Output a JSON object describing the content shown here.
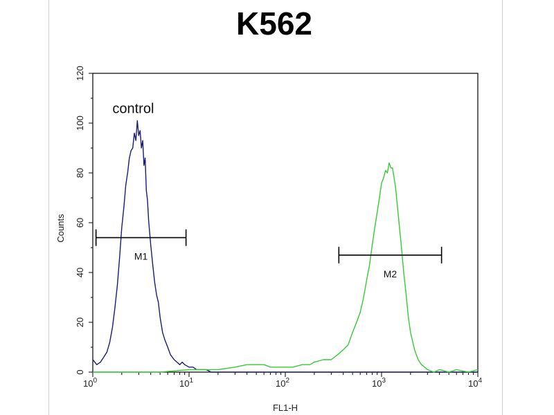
{
  "chart_data": {
    "type": "line",
    "title": "K562",
    "xlabel": "FL1-H",
    "ylabel": "Counts",
    "x_scale": "log",
    "xlim": [
      1,
      10000
    ],
    "ylim": [
      0,
      120
    ],
    "y_ticks": [
      "0",
      "20",
      "40",
      "60",
      "80",
      "100",
      "120"
    ],
    "x_ticks": [
      {
        "base": "10",
        "exp": "0",
        "value": 1
      },
      {
        "base": "10",
        "exp": "1",
        "value": 10
      },
      {
        "base": "10",
        "exp": "2",
        "value": 100
      },
      {
        "base": "10",
        "exp": "3",
        "value": 1000
      },
      {
        "base": "10",
        "exp": "4",
        "value": 10000
      }
    ],
    "grid": false,
    "annotations": [
      {
        "text": "control",
        "x": 1.6,
        "y": 104
      }
    ],
    "gates": [
      {
        "label": "M1",
        "x_start": 1.08,
        "x_end": 9.3,
        "y": 54
      },
      {
        "label": "M2",
        "x_start": 360,
        "x_end": 4200,
        "y": 47
      }
    ],
    "series": [
      {
        "color": "#1a1a7a",
        "x": [
          1.0,
          1.1,
          1.2,
          1.3,
          1.4,
          1.5,
          1.6,
          1.7,
          1.8,
          1.9,
          2.0,
          2.1,
          2.2,
          2.3,
          2.4,
          2.5,
          2.6,
          2.7,
          2.8,
          2.9,
          3.0,
          3.1,
          3.2,
          3.3,
          3.4,
          3.5,
          3.6,
          3.7,
          3.8,
          4.0,
          4.2,
          4.4,
          4.6,
          4.8,
          5.0,
          5.3,
          5.6,
          6.0,
          6.4,
          7.0,
          7.5,
          8.0,
          8.5,
          9.0,
          10.0,
          11.0,
          12.0,
          13.0,
          15.0,
          17.0,
          20.0,
          25.0,
          30.0,
          50.0,
          100.0,
          300.0,
          1000.0,
          3000.0,
          10000.0
        ],
        "y": [
          5,
          3,
          4,
          6,
          8,
          12,
          18,
          26,
          35,
          46,
          58,
          66,
          75,
          80,
          86,
          89,
          90,
          96,
          93,
          101,
          95,
          97,
          90,
          93,
          83,
          86,
          73,
          69,
          61,
          51,
          43,
          36,
          31,
          28,
          22,
          16,
          13,
          10,
          7,
          5,
          4,
          3,
          4,
          3,
          2,
          2,
          1,
          1,
          1,
          0,
          0,
          0,
          0,
          0,
          0,
          0,
          0,
          0,
          0
        ]
      },
      {
        "color": "#33cc33",
        "x": [
          1.0,
          2.0,
          5.0,
          10.0,
          20.0,
          30.0,
          40.0,
          50.0,
          60.0,
          70.0,
          80.0,
          100.0,
          120.0,
          150.0,
          180.0,
          200.0,
          250.0,
          300.0,
          350.0,
          400.0,
          450.0,
          500.0,
          550.0,
          600.0,
          650.0,
          700.0,
          750.0,
          800.0,
          850.0,
          900.0,
          950.0,
          1000.0,
          1050.0,
          1100.0,
          1150.0,
          1200.0,
          1250.0,
          1300.0,
          1350.0,
          1400.0,
          1500.0,
          1600.0,
          1700.0,
          1800.0,
          1900.0,
          2000.0,
          2200.0,
          2400.0,
          2600.0,
          2800.0,
          3000.0,
          3500.0,
          4000.0,
          5000.0,
          6000.0,
          8000.0,
          10000.0
        ],
        "y": [
          0,
          0,
          0,
          1,
          1,
          2,
          3,
          3,
          3,
          2,
          2,
          2,
          2,
          3,
          3,
          4,
          5,
          5,
          7,
          9,
          11,
          16,
          20,
          24,
          30,
          37,
          43,
          51,
          58,
          64,
          70,
          76,
          78,
          81,
          80,
          84,
          82,
          82,
          78,
          74,
          62,
          51,
          40,
          31,
          22,
          16,
          9,
          5,
          3,
          2,
          1,
          0,
          1,
          0,
          1,
          0,
          1
        ]
      }
    ]
  }
}
